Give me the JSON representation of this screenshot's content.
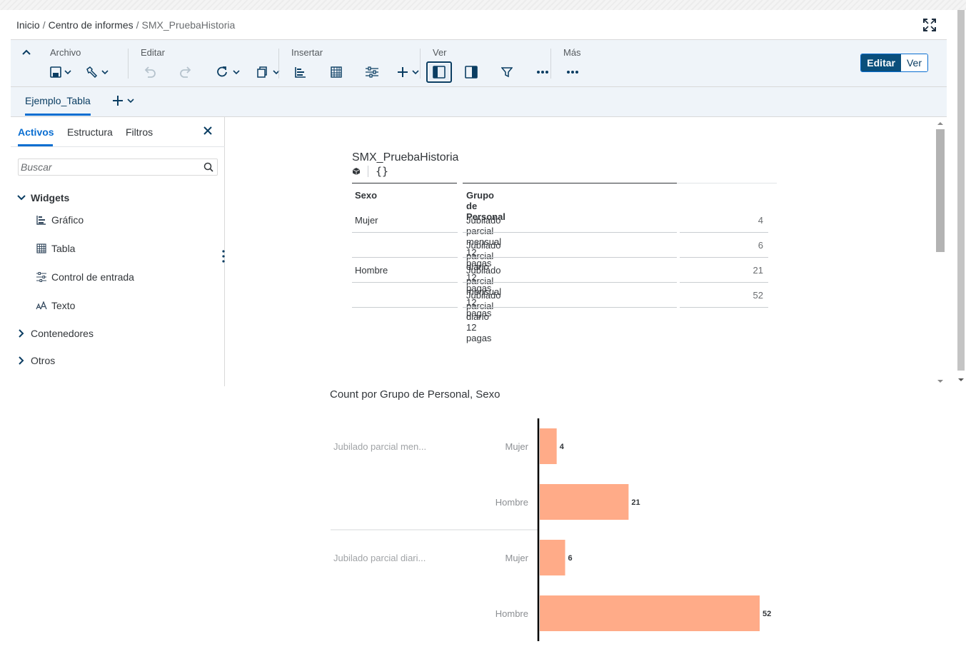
{
  "breadcrumb": {
    "home": "Inicio",
    "section": "Centro de informes",
    "current": "SMX_PruebaHistoria",
    "sep": "/"
  },
  "toolbar": {
    "archivo": "Archivo",
    "editar": "Editar",
    "insertar": "Insertar",
    "ver": "Ver",
    "mas": "Más"
  },
  "mode": {
    "edit": "Editar",
    "view": "Ver"
  },
  "pages": {
    "active": "Ejemplo_Tabla"
  },
  "panel": {
    "tabs": [
      "Activos",
      "Estructura",
      "Filtros"
    ],
    "search_placeholder": "Buscar",
    "widgets_label": "Widgets",
    "widgets": [
      {
        "label": "Gráfico",
        "icon": "bar-chart-icon"
      },
      {
        "label": "Tabla",
        "icon": "table-icon"
      },
      {
        "label": "Control de entrada",
        "icon": "sliders-icon"
      },
      {
        "label": "Texto",
        "icon": "text-icon"
      }
    ],
    "contenedores": "Contenedores",
    "otros": "Otros"
  },
  "table": {
    "title": "SMX_PruebaHistoria",
    "formula_symbol": "{}",
    "headers": [
      "Sexo",
      "Grupo de Personal"
    ],
    "rows": [
      {
        "sexo": "Mujer",
        "grupo": "Jubilado parcial mensual 12 pagas",
        "count": "4"
      },
      {
        "sexo": "",
        "grupo": "Jubilado parcial diario 12 pagas",
        "count": "6"
      },
      {
        "sexo": "Hombre",
        "grupo": "Jubilado parcial mensual 12 pagas",
        "count": "21"
      },
      {
        "sexo": "",
        "grupo": "Jubilado parcial diario 12 pagas",
        "count": "52"
      }
    ]
  },
  "chart_data": {
    "type": "bar",
    "orientation": "horizontal",
    "title": "Count por Grupo de Personal, Sexo",
    "groups": [
      "Jubilado parcial men...",
      "Jubilado parcial diari..."
    ],
    "categories": [
      "Mujer",
      "Hombre",
      "Mujer",
      "Hombre"
    ],
    "values": [
      4,
      21,
      6,
      52
    ],
    "data_labels": [
      "4",
      "21",
      "6",
      "52"
    ],
    "color": "#ffab88",
    "grid": false
  }
}
